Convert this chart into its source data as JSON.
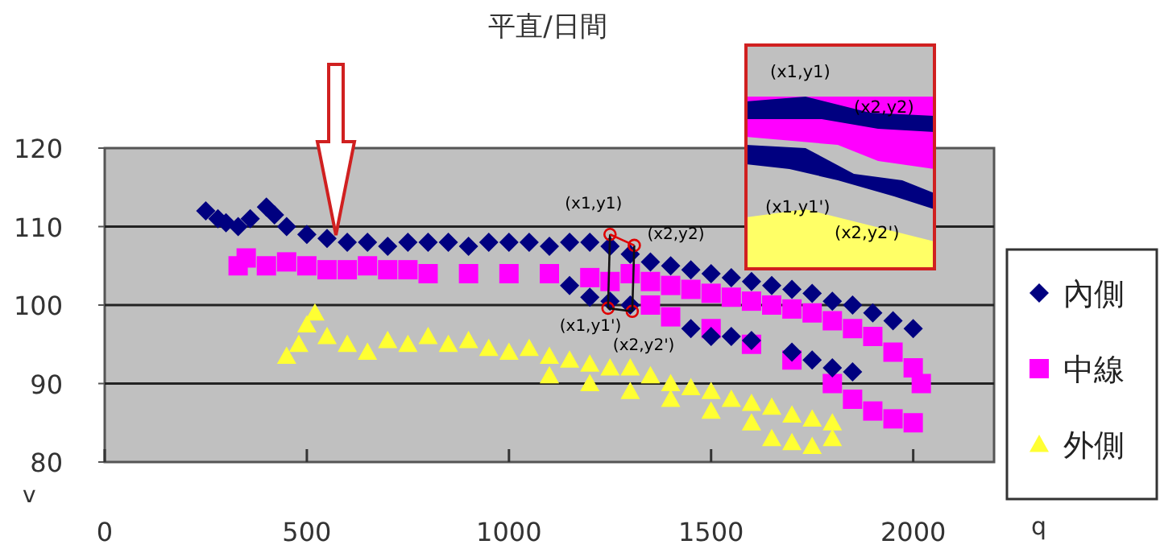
{
  "chart_data": {
    "type": "scatter",
    "title": "平直/日間",
    "xlabel": "q",
    "ylabel": "v",
    "xlim": [
      0,
      2200
    ],
    "ylim": [
      80,
      120
    ],
    "xticks": [
      0,
      500,
      1000,
      1500,
      2000
    ],
    "yticks": [
      80,
      90,
      100,
      110,
      120
    ],
    "grid": "y",
    "legend": "right",
    "series": [
      {
        "name": "內側",
        "color": "#000080",
        "marker": "diamond",
        "x": [
          250,
          280,
          300,
          330,
          360,
          400,
          420,
          450,
          500,
          550,
          600,
          650,
          700,
          750,
          800,
          850,
          900,
          950,
          1000,
          1050,
          1100,
          1150,
          1200,
          1250,
          1300,
          1350,
          1400,
          1450,
          1500,
          1550,
          1600,
          1650,
          1700,
          1750,
          1800,
          1850,
          1900,
          1950,
          2000,
          1150,
          1200,
          1250,
          1300,
          1450,
          1500,
          1550,
          1600,
          1700,
          1750,
          1800,
          1850
        ],
        "values": [
          112,
          111,
          110.5,
          110,
          111,
          112.5,
          111.5,
          110,
          109,
          108.5,
          108,
          108,
          107.5,
          108,
          108,
          108,
          107.5,
          108,
          108,
          108,
          107.5,
          108,
          108,
          107.5,
          106.5,
          105.5,
          105,
          104.5,
          104,
          103.5,
          103,
          102.5,
          102,
          101.5,
          100.5,
          100,
          99,
          98,
          97,
          102.5,
          101,
          100.5,
          100,
          97,
          96,
          96,
          95.5,
          94,
          93,
          92,
          91.5
        ]
      },
      {
        "name": "中線",
        "color": "#ff00ff",
        "marker": "square",
        "x": [
          330,
          350,
          400,
          450,
          500,
          550,
          600,
          650,
          700,
          750,
          800,
          900,
          1000,
          1100,
          1200,
          1250,
          1300,
          1350,
          1400,
          1450,
          1500,
          1550,
          1600,
          1650,
          1700,
          1750,
          1800,
          1850,
          1900,
          1950,
          2000,
          2020,
          1350,
          1400,
          1500,
          1600,
          1700,
          1800,
          1850,
          1900,
          1950,
          2000
        ],
        "values": [
          105,
          106,
          105,
          105.5,
          105,
          104.5,
          104.5,
          105,
          104.5,
          104.5,
          104,
          104,
          104,
          104,
          103.5,
          103,
          104,
          103,
          102.5,
          102,
          101.5,
          101,
          100.5,
          100,
          99.5,
          99,
          98,
          97,
          96,
          94,
          92,
          90,
          100,
          98.5,
          97,
          95,
          93,
          90,
          88,
          86.5,
          85.5,
          85
        ]
      },
      {
        "name": "外側",
        "color": "#ffff33",
        "marker": "triangle",
        "x": [
          450,
          480,
          500,
          520,
          550,
          600,
          650,
          700,
          750,
          800,
          850,
          900,
          950,
          1000,
          1050,
          1100,
          1150,
          1200,
          1250,
          1300,
          1350,
          1400,
          1450,
          1500,
          1550,
          1600,
          1650,
          1700,
          1750,
          1800,
          1100,
          1200,
          1300,
          1400,
          1500,
          1600,
          1650,
          1700,
          1750,
          1800
        ],
        "values": [
          93.5,
          95,
          97.5,
          99,
          96,
          95,
          94,
          95.5,
          95,
          96,
          95,
          95.5,
          94.5,
          94,
          94.5,
          93.5,
          93,
          92.5,
          92,
          92,
          91,
          90,
          89.5,
          89,
          88,
          87.5,
          87,
          86,
          85.5,
          85,
          91,
          90,
          89,
          88,
          86.5,
          85,
          83,
          82.5,
          82,
          83
        ]
      }
    ],
    "annotations": [
      {
        "text": "(x1,y1)",
        "x": 1250,
        "y": 109
      },
      {
        "text": "(x2,y2)",
        "x": 1310,
        "y": 107.6
      },
      {
        "text": "(x1,y1')",
        "x": 1245,
        "y": 99.6
      },
      {
        "text": "(x2,y2')",
        "x": 1305,
        "y": 99.2
      },
      "(x1,y1)",
      "(x2,y2)",
      "(x1,y1')",
      "(x2,y2')"
    ]
  }
}
